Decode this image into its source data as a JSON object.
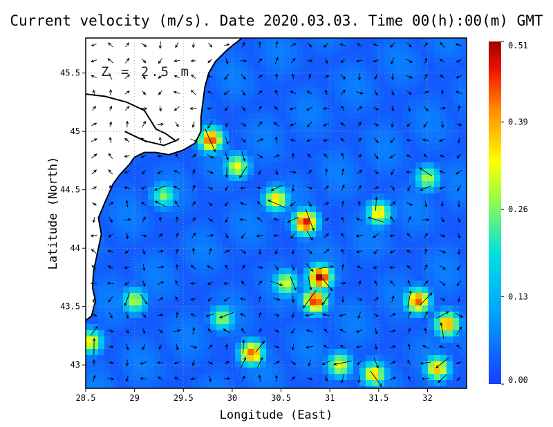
{
  "title": "Current velocity (m/s). Date 2020.03.03. Time 00(h):00(m) GMT",
  "depth_label": "Z = 2.5 m",
  "chart_data": {
    "type": "heatmap",
    "title": "Current velocity (m/s). Date 2020.03.03. Time 00(h):00(m) GMT",
    "xlabel": "Longitude (East)",
    "ylabel": "Latitude (North)",
    "xlim": [
      28.5,
      32.4
    ],
    "ylim": [
      42.8,
      45.8
    ],
    "xticks": [
      28.5,
      29,
      29.5,
      30,
      30.5,
      31,
      31.5,
      32
    ],
    "xtick_labels": [
      "28.5",
      "29",
      "29.5",
      "30",
      "30.5",
      "31",
      "31.5",
      "32"
    ],
    "yticks": [
      43,
      43.5,
      44,
      44.5,
      45,
      45.5
    ],
    "ytick_labels": [
      "43",
      "43.5",
      "44",
      "44.5",
      "45",
      "45.5"
    ],
    "grid": true,
    "colorbar": {
      "min": 0.0,
      "max": 0.51,
      "ticks": [
        0.0,
        0.13,
        0.26,
        0.39,
        0.51
      ],
      "tick_labels": [
        "0.00",
        "0.13",
        "0.26",
        "0.39",
        "0.51"
      ],
      "colors": [
        "#1a3cff",
        "#00c8ff",
        "#ffff00",
        "#ff7f00",
        "#b40000"
      ]
    },
    "land_color": "#ffffff",
    "coastline_color": "#000000",
    "arrow_color": "#000000",
    "hotspots": [
      {
        "lon": 29.78,
        "lat": 44.93,
        "speed": 0.45
      },
      {
        "lon": 30.05,
        "lat": 44.7,
        "speed": 0.33
      },
      {
        "lon": 30.45,
        "lat": 44.42,
        "speed": 0.36
      },
      {
        "lon": 30.75,
        "lat": 44.22,
        "speed": 0.48
      },
      {
        "lon": 30.9,
        "lat": 43.75,
        "speed": 0.51
      },
      {
        "lon": 30.85,
        "lat": 43.55,
        "speed": 0.47
      },
      {
        "lon": 30.55,
        "lat": 43.7,
        "speed": 0.32
      },
      {
        "lon": 30.2,
        "lat": 43.1,
        "speed": 0.43
      },
      {
        "lon": 31.5,
        "lat": 44.3,
        "speed": 0.36
      },
      {
        "lon": 31.9,
        "lat": 43.55,
        "speed": 0.44
      },
      {
        "lon": 32.2,
        "lat": 43.35,
        "speed": 0.41
      },
      {
        "lon": 31.45,
        "lat": 42.92,
        "speed": 0.37
      },
      {
        "lon": 32.1,
        "lat": 42.97,
        "speed": 0.38
      },
      {
        "lon": 31.1,
        "lat": 43.0,
        "speed": 0.33
      },
      {
        "lon": 32.0,
        "lat": 44.6,
        "speed": 0.3
      },
      {
        "lon": 29.0,
        "lat": 43.55,
        "speed": 0.3
      },
      {
        "lon": 29.3,
        "lat": 44.45,
        "speed": 0.27
      },
      {
        "lon": 29.9,
        "lat": 43.4,
        "speed": 0.28
      },
      {
        "lon": 28.55,
        "lat": 43.2,
        "speed": 0.34
      }
    ]
  }
}
